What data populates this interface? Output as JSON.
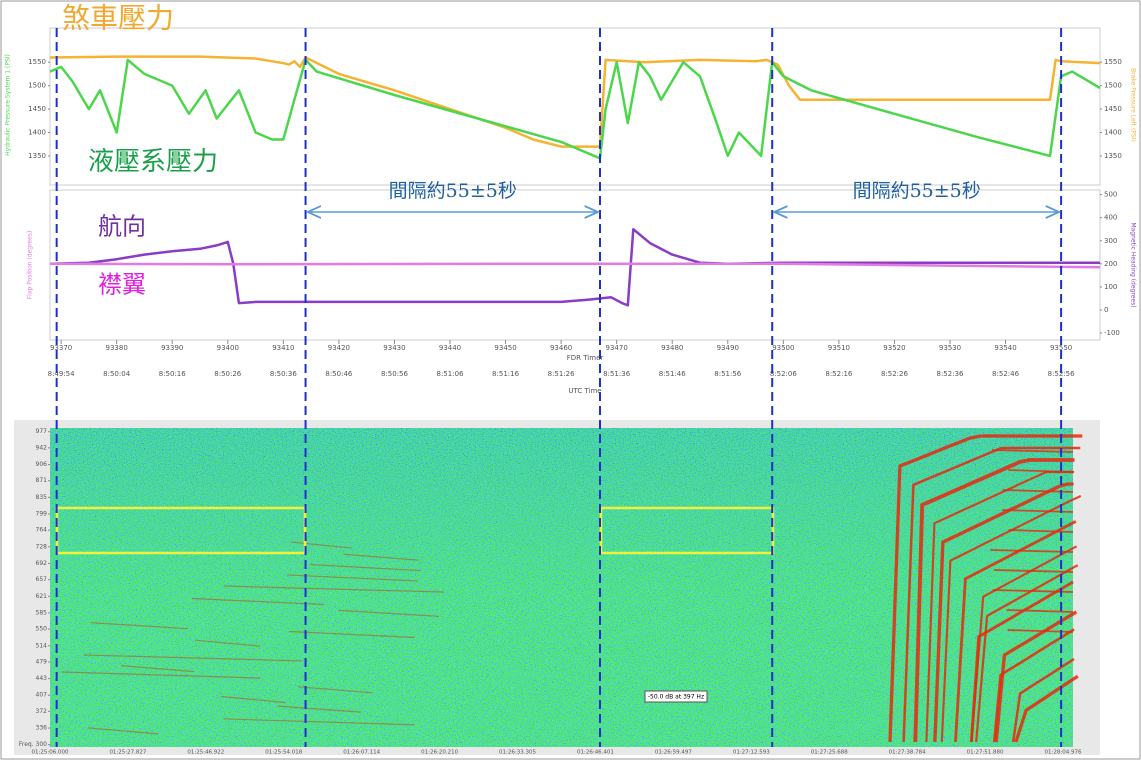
{
  "chart_data": [
    {
      "type": "line",
      "y_label": "Hydraulic Pressure System 1 (PSI)",
      "y2_label": "Brake Pressure Left (PSI)",
      "xlim": [
        93368,
        93557
      ],
      "ylim": [
        1288,
        1623
      ],
      "yticks": [
        1350,
        1400,
        1450,
        1500,
        1550
      ],
      "y2lim": [
        1288,
        1623
      ],
      "y2ticks": [
        1350,
        1400,
        1450,
        1500,
        1550
      ],
      "series": [
        {
          "name": "煞車壓力",
          "color": "#f5b233",
          "axis": "y2",
          "x": [
            93368,
            93380,
            93395,
            93405,
            93408,
            93410,
            93411,
            93412,
            93413,
            93414,
            93420,
            93430,
            93440,
            93450,
            93455,
            93460,
            93462,
            93467,
            93468,
            93475,
            93485,
            93495,
            93497,
            93499,
            93501,
            93503,
            93520,
            93540,
            93548,
            93549,
            93550,
            93557
          ],
          "values": [
            1560,
            1562,
            1562,
            1558,
            1552,
            1548,
            1545,
            1552,
            1540,
            1560,
            1525,
            1490,
            1450,
            1410,
            1385,
            1370,
            1370,
            1370,
            1555,
            1550,
            1555,
            1552,
            1555,
            1545,
            1500,
            1470,
            1470,
            1470,
            1470,
            1555,
            1552,
            1548
          ]
        },
        {
          "name": "液壓系壓力",
          "color": "#4cd64c",
          "x": [
            93368,
            93370,
            93372,
            93375,
            93377,
            93380,
            93382,
            93385,
            93390,
            93393,
            93396,
            93398,
            93402,
            93405,
            93408,
            93410,
            93412,
            93414,
            93416,
            93430,
            93445,
            93460,
            93467,
            93468,
            93470,
            93472,
            93474,
            93476,
            93478,
            93482,
            93485,
            93488,
            93490,
            93492,
            93496,
            93498,
            93500,
            93505,
            93520,
            93535,
            93548,
            93550,
            93552,
            93557
          ],
          "values": [
            1530,
            1540,
            1510,
            1450,
            1490,
            1400,
            1555,
            1525,
            1500,
            1440,
            1490,
            1430,
            1490,
            1400,
            1385,
            1385,
            1470,
            1555,
            1530,
            1480,
            1430,
            1380,
            1345,
            1450,
            1550,
            1420,
            1550,
            1520,
            1470,
            1550,
            1520,
            1420,
            1350,
            1400,
            1350,
            1550,
            1520,
            1490,
            1440,
            1390,
            1350,
            1520,
            1530,
            1495
          ]
        }
      ]
    },
    {
      "type": "line",
      "y_label": "Flap Position (degrees)",
      "y2_label": "Magnetic Heading (degrees)",
      "x_label": "FDR Timer",
      "x2_label": "UTC Time",
      "xlim": [
        93368,
        93557
      ],
      "xticks": [
        93370,
        93380,
        93390,
        93400,
        93410,
        93420,
        93430,
        93440,
        93450,
        93460,
        93470,
        93480,
        93490,
        93500,
        93510,
        93520,
        93530,
        93540,
        93550
      ],
      "x2_labels": [
        "8:49:54",
        "8:50:04",
        "8:50:16",
        "8:50:26",
        "8:50:36",
        "8:50:46",
        "8:50:56",
        "8:51:06",
        "8:51:16",
        "8:51:26",
        "8:51:36",
        "8:51:46",
        "8:51:56",
        "8:52:06",
        "8:52:16",
        "8:52:26",
        "8:52:36",
        "8:52:46",
        "8:52:56"
      ],
      "y2lim": [
        -130,
        520
      ],
      "y2ticks": [
        -100,
        0,
        100,
        200,
        300,
        400,
        500
      ],
      "markers_x": [
        93369.2,
        93414,
        93467,
        93498,
        93550
      ],
      "intervals": [
        "間隔約55±5秒",
        "間隔約55±5秒"
      ],
      "series": [
        {
          "name": "航向",
          "color": "#8a3cc4",
          "axis": "y2",
          "x": [
            93368,
            93375,
            93380,
            93385,
            93390,
            93395,
            93398,
            93400,
            93401,
            93402,
            93405,
            93430,
            93460,
            93465,
            93469,
            93471,
            93472,
            93473,
            93476,
            93480,
            93485,
            93490,
            93500,
            93557
          ],
          "values": [
            200,
            205,
            220,
            240,
            255,
            265,
            280,
            295,
            200,
            30,
            35,
            35,
            35,
            45,
            55,
            30,
            20,
            350,
            290,
            240,
            205,
            200,
            205,
            205
          ]
        },
        {
          "name": "襟翼",
          "color": "#e47ae4",
          "axis": "y2",
          "x": [
            93368,
            93400,
            93450,
            93500,
            93540,
            93557
          ],
          "values": [
            200,
            198,
            200,
            200,
            190,
            185
          ]
        }
      ]
    },
    {
      "type": "spectrogram",
      "ylim": [
        295,
        985
      ],
      "yticks": [
        {
          "value": 300,
          "label": "Freq. 300"
        },
        336,
        372,
        407,
        443,
        479,
        514,
        550,
        585,
        621,
        657,
        692,
        728,
        764,
        799,
        835,
        871,
        906,
        942,
        977
      ],
      "time_labels": [
        "01:25:06.000",
        "01:25:27.827",
        "01:25:46.922",
        "01:25:54.018",
        "01:26:07.114",
        "01:26:20.210",
        "01:26:33.305",
        "01:26:46.401",
        "01:26:59.497",
        "01:27:12.593",
        "01:27:25.688",
        "01:27:38.784",
        "01:27:51.880",
        "01:28:04.976"
      ],
      "readout": "-50.0 dB at 397 Hz"
    }
  ]
}
